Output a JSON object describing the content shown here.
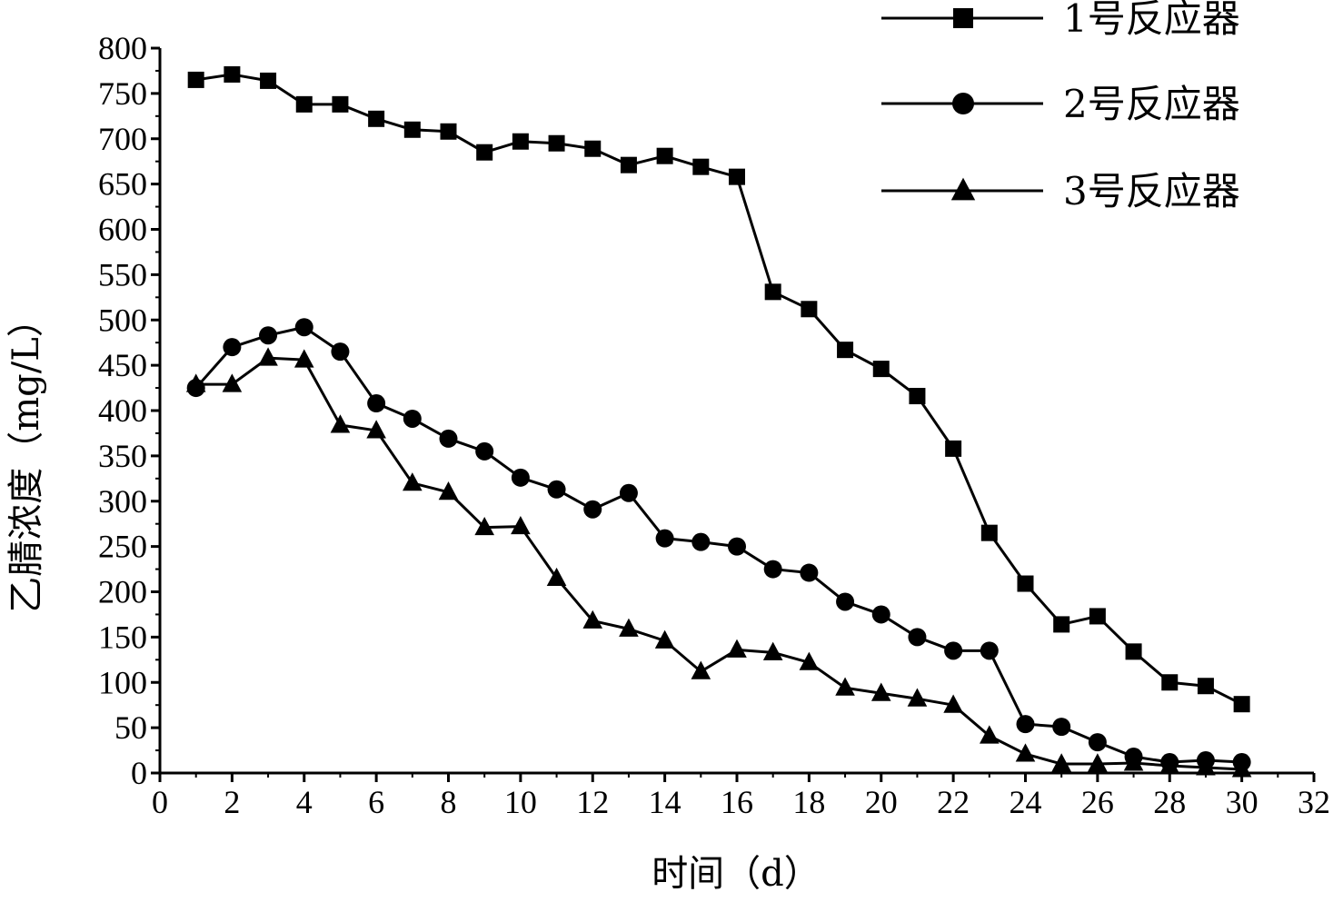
{
  "chart_data": {
    "type": "line",
    "title": "",
    "xlabel": "时间（d）",
    "ylabel": "乙腈浓度（mg/L）",
    "xlim": [
      0,
      32
    ],
    "ylim": [
      0,
      800
    ],
    "x_ticks": [
      0,
      2,
      4,
      6,
      8,
      10,
      12,
      14,
      16,
      18,
      20,
      22,
      24,
      26,
      28,
      30,
      32
    ],
    "y_ticks": [
      0,
      50,
      100,
      150,
      200,
      250,
      300,
      350,
      400,
      450,
      500,
      550,
      600,
      650,
      700,
      750,
      800
    ],
    "grid": false,
    "legend_position": "top-right",
    "x": [
      1,
      2,
      3,
      4,
      5,
      6,
      7,
      8,
      9,
      10,
      11,
      12,
      13,
      14,
      15,
      16,
      17,
      18,
      19,
      20,
      21,
      22,
      23,
      24,
      25,
      26,
      27,
      28,
      29,
      30
    ],
    "series": [
      {
        "name": "1号反应器",
        "marker": "square",
        "values": [
          765,
          771,
          764,
          738,
          738,
          722,
          710,
          708,
          685,
          697,
          695,
          689,
          671,
          681,
          669,
          658,
          531,
          512,
          467,
          446,
          416,
          358,
          265,
          209,
          164,
          173,
          134,
          100,
          96,
          76
        ]
      },
      {
        "name": "2号反应器",
        "marker": "circle",
        "values": [
          425,
          470,
          483,
          492,
          465,
          408,
          391,
          369,
          355,
          326,
          313,
          291,
          309,
          259,
          255,
          250,
          225,
          221,
          189,
          175,
          150,
          135,
          135,
          54,
          51,
          34,
          18,
          12,
          14,
          12
        ]
      },
      {
        "name": "3号反应器",
        "marker": "triangle",
        "values": [
          429,
          429,
          458,
          456,
          384,
          378,
          320,
          310,
          271,
          272,
          215,
          168,
          159,
          146,
          112,
          136,
          133,
          122,
          94,
          88,
          82,
          75,
          41,
          21,
          10,
          10,
          11,
          8,
          6,
          4
        ]
      }
    ]
  }
}
